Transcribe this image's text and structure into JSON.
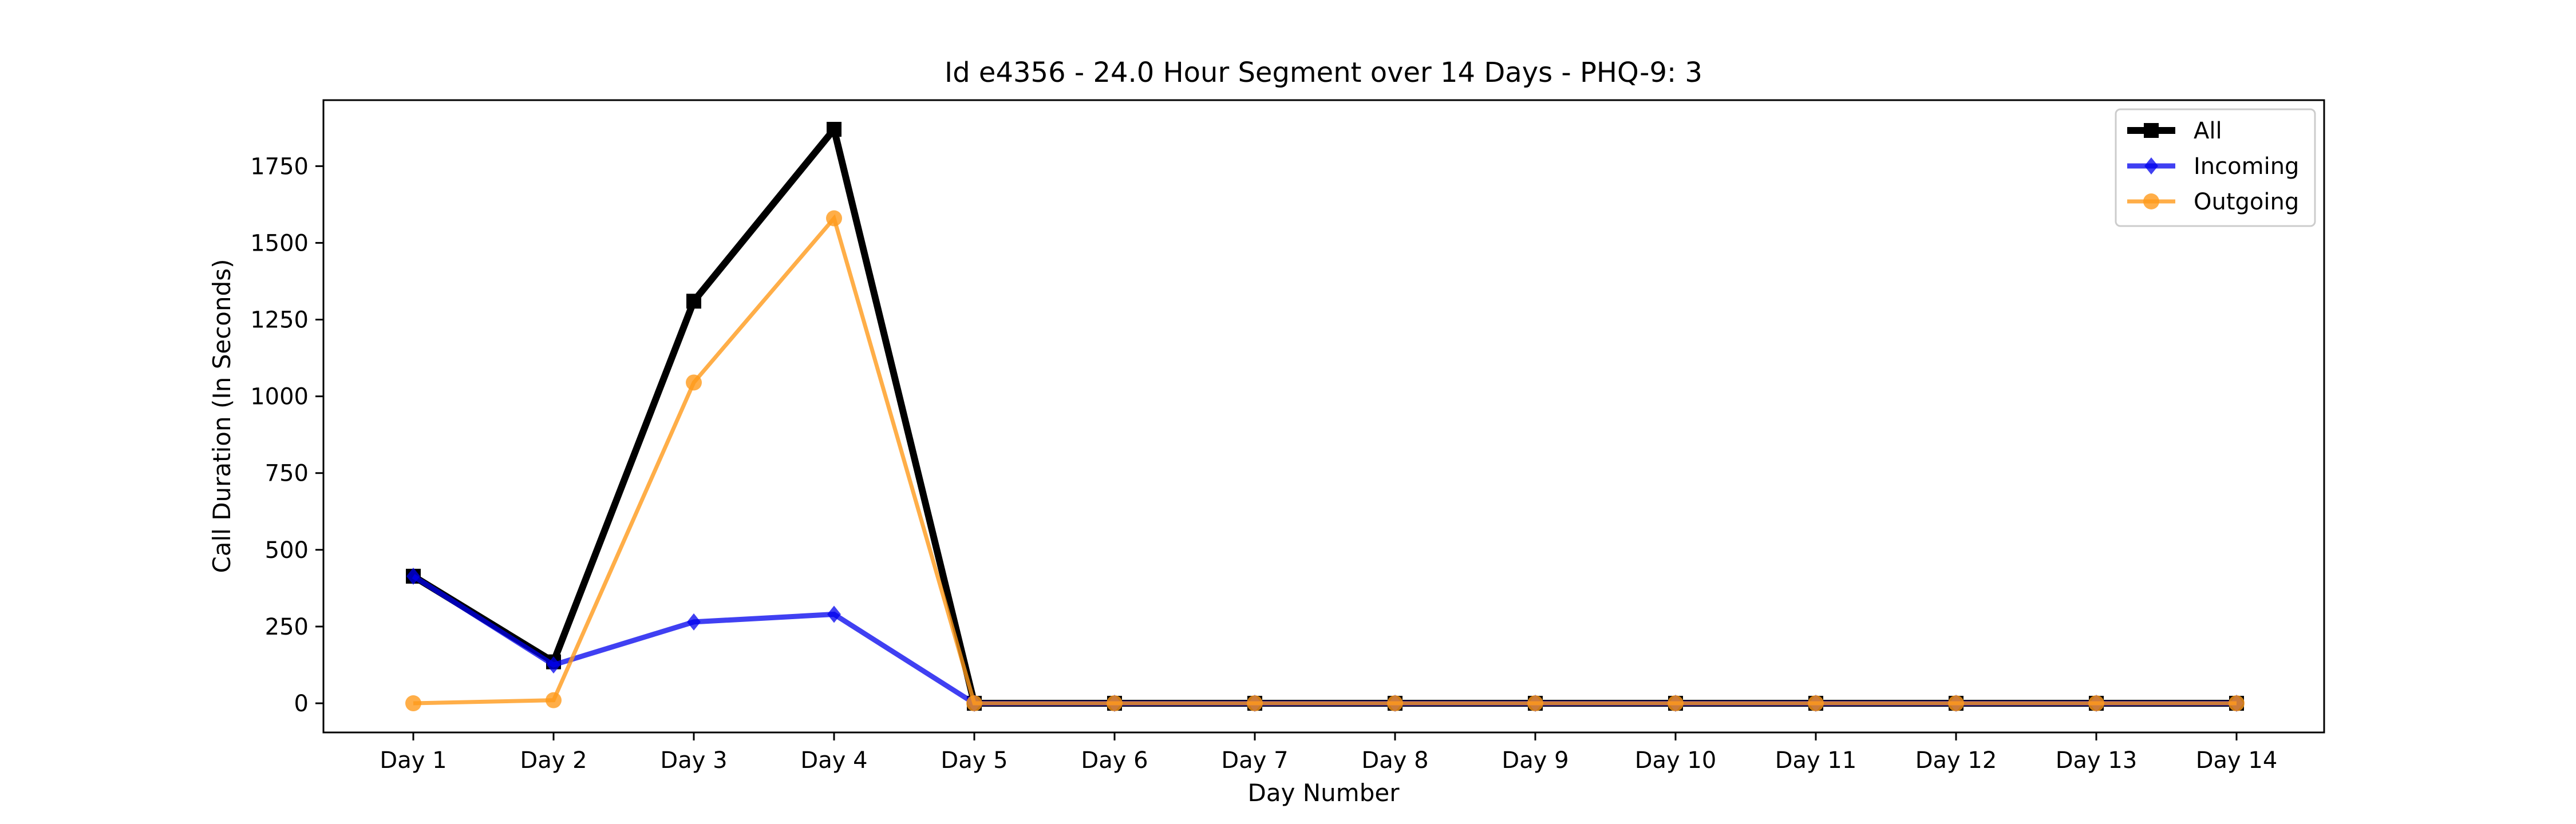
{
  "chart_data": {
    "type": "line",
    "title": "Id e4356 - 24.0 Hour Segment over 14 Days - PHQ-9: 3",
    "xlabel": "Day Number",
    "ylabel": "Call Duration (In Seconds)",
    "categories": [
      "Day 1",
      "Day 2",
      "Day 3",
      "Day 4",
      "Day 5",
      "Day 6",
      "Day 7",
      "Day 8",
      "Day 9",
      "Day 10",
      "Day 11",
      "Day 12",
      "Day 13",
      "Day 14"
    ],
    "yticks": [
      0,
      250,
      500,
      750,
      1000,
      1250,
      1500,
      1750
    ],
    "ylim": [
      -95,
      1965
    ],
    "grid": false,
    "legend_position": "top-right",
    "series": [
      {
        "name": "All",
        "color": "#000000",
        "marker": "square",
        "values": [
          414,
          135,
          1310,
          1870,
          0,
          0,
          0,
          0,
          0,
          0,
          0,
          0,
          0,
          0
        ]
      },
      {
        "name": "Incoming",
        "color": "#0000ee",
        "marker": "diamond",
        "values": [
          414,
          125,
          265,
          290,
          0,
          0,
          0,
          0,
          0,
          0,
          0,
          0,
          0,
          0
        ]
      },
      {
        "name": "Outgoing",
        "color": "#ff9a1a",
        "marker": "circle",
        "values": [
          0,
          10,
          1045,
          1580,
          0,
          0,
          0,
          0,
          0,
          0,
          0,
          0,
          0,
          0
        ]
      }
    ]
  }
}
